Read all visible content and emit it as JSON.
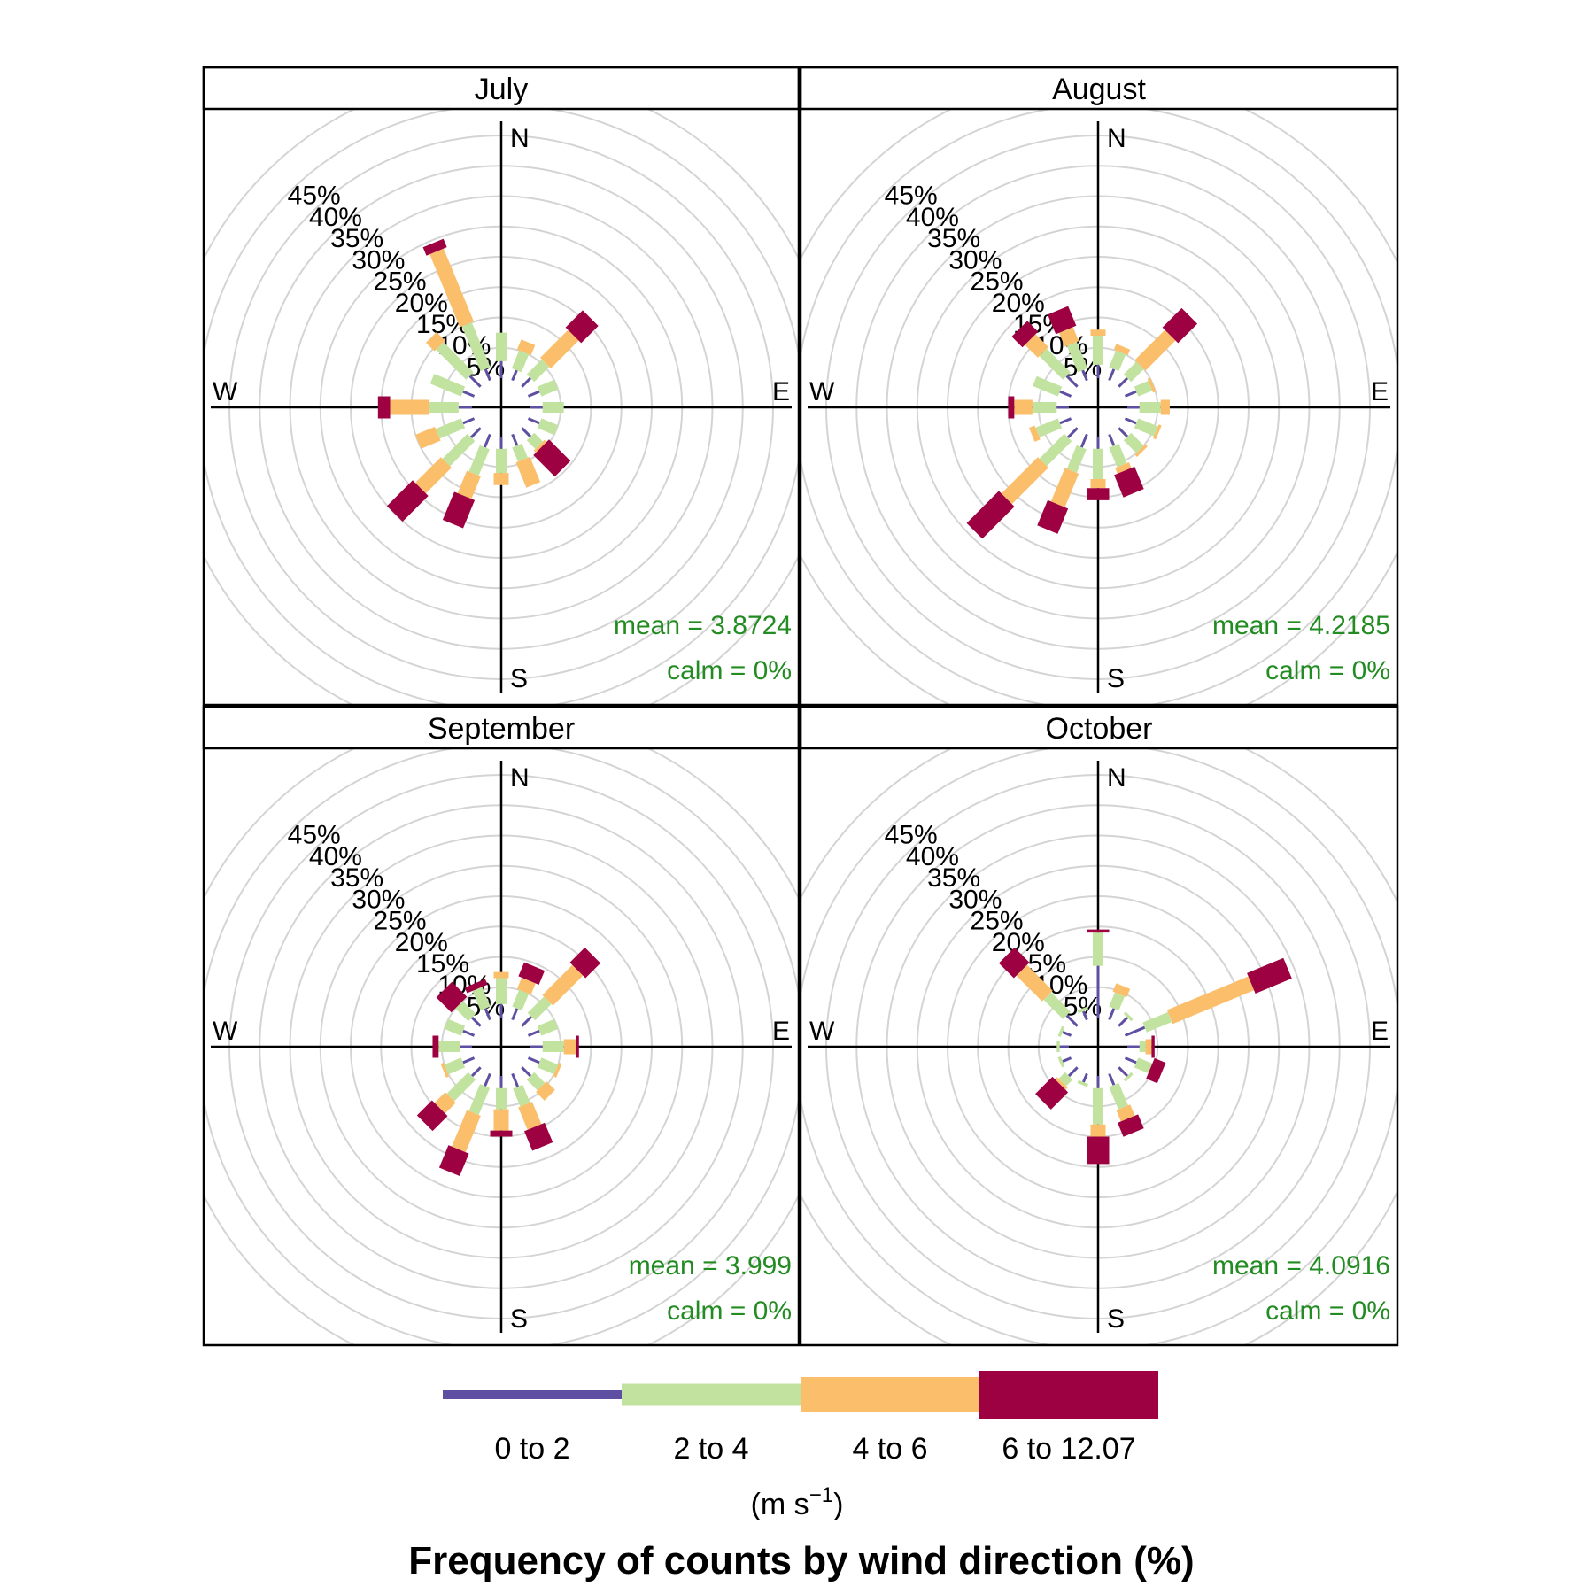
{
  "chart_data": {
    "type": "windrose",
    "title": "Frequency of counts by wind direction (%)",
    "directions": [
      "N",
      "NNE",
      "NE",
      "ENE",
      "E",
      "ESE",
      "SE",
      "SSE",
      "S",
      "SSW",
      "SW",
      "WSW",
      "W",
      "WNW",
      "NW",
      "NNW"
    ],
    "direction_degrees": [
      0,
      22.5,
      45,
      67.5,
      90,
      112.5,
      135,
      157.5,
      180,
      202.5,
      225,
      247.5,
      270,
      292.5,
      315,
      337.5
    ],
    "compass_labels": {
      "N": "N",
      "E": "E",
      "S": "S",
      "W": "W"
    },
    "radial_axis": {
      "unit": "%",
      "ticks": [
        5,
        10,
        15,
        20,
        25,
        30,
        35,
        40,
        45
      ],
      "tick_labels": [
        "5%",
        "10%",
        "15%",
        "20%",
        "25%",
        "30%",
        "35%",
        "40%",
        "45%"
      ],
      "max": 50,
      "grid": true
    },
    "legend": {
      "bins": [
        {
          "label": "0 to 2",
          "color": "#5e4fa2"
        },
        {
          "label": "2 to 4",
          "color": "#c2e3a0"
        },
        {
          "label": "4 to 6",
          "color": "#fbbf6c"
        },
        {
          "label": "6 to 12.07",
          "color": "#9e0142"
        }
      ],
      "unit_label": "(m s",
      "unit_superscript": "−1",
      "unit_close": ")"
    },
    "panels": [
      {
        "title": "July",
        "mean_text": "mean = 3.8724",
        "calm_text": "calm = 0%",
        "cumulative_percent": [
          [
            2.8,
            7.5,
            7.5,
            7.5
          ],
          [
            1.8,
            5.0,
            6.8,
            6.8
          ],
          [
            2.0,
            5.5,
            12.0,
            16.0
          ],
          [
            2.0,
            5.0,
            5.0,
            5.0
          ],
          [
            2.0,
            5.5,
            5.5,
            5.5
          ],
          [
            2.0,
            5.0,
            5.0,
            5.0
          ],
          [
            2.0,
            4.0,
            4.5,
            9.5
          ],
          [
            2.0,
            4.5,
            9.0,
            9.0
          ],
          [
            2.0,
            6.0,
            8.0,
            8.0
          ],
          [
            2.3,
            7.0,
            11.0,
            16.0
          ],
          [
            2.2,
            8.0,
            14.0,
            20.0
          ],
          [
            2.0,
            6.5,
            10.0,
            10.0
          ],
          [
            2.2,
            7.0,
            13.5,
            15.5
          ],
          [
            2.0,
            7.5,
            7.5,
            7.5
          ],
          [
            2.5,
            9.5,
            11.5,
            11.5
          ],
          [
            2.0,
            10.0,
            23.0,
            24.5
          ]
        ]
      },
      {
        "title": "August",
        "mean_text": "mean = 4.2185",
        "calm_text": "calm = 0%",
        "cumulative_percent": [
          [
            2.2,
            7.0,
            8.0,
            8.0
          ],
          [
            2.0,
            5.0,
            6.0,
            6.0
          ],
          [
            2.0,
            5.0,
            12.0,
            16.5
          ],
          [
            2.0,
            4.5,
            5.0,
            5.0
          ],
          [
            2.0,
            5.5,
            7.0,
            7.0
          ],
          [
            2.0,
            5.5,
            6.0,
            6.0
          ],
          [
            2.0,
            5.0,
            5.5,
            5.5
          ],
          [
            2.0,
            5.5,
            6.5,
            10.5
          ],
          [
            2.0,
            7.0,
            8.5,
            10.5
          ],
          [
            2.3,
            6.5,
            12.5,
            17.0
          ],
          [
            2.2,
            8.0,
            16.5,
            24.0
          ],
          [
            2.0,
            6.0,
            7.0,
            7.0
          ],
          [
            2.0,
            6.0,
            9.0,
            10.0
          ],
          [
            2.0,
            6.5,
            6.5,
            6.5
          ],
          [
            2.5,
            8.0,
            11.0,
            13.5
          ],
          [
            1.8,
            6.5,
            9.0,
            12.5
          ]
        ]
      },
      {
        "title": "September",
        "mean_text": "mean = 3.999",
        "calm_text": "calm = 0%",
        "cumulative_percent": [
          [
            2.2,
            6.5,
            7.5,
            7.5
          ],
          [
            2.0,
            5.0,
            7.0,
            9.5
          ],
          [
            2.2,
            6.0,
            13.0,
            16.5
          ],
          [
            2.0,
            5.0,
            5.0,
            5.0
          ],
          [
            2.0,
            5.5,
            7.5,
            8.0
          ],
          [
            2.0,
            5.0,
            5.5,
            5.5
          ],
          [
            2.0,
            4.5,
            6.5,
            6.5
          ],
          [
            2.3,
            5.5,
            9.5,
            13.0
          ],
          [
            2.0,
            5.5,
            9.0,
            10.0
          ],
          [
            2.2,
            7.0,
            13.5,
            17.5
          ],
          [
            2.0,
            7.0,
            9.5,
            13.0
          ],
          [
            2.0,
            5.0,
            5.5,
            5.5
          ],
          [
            2.0,
            5.5,
            5.5,
            6.5
          ],
          [
            2.0,
            5.0,
            5.0,
            5.0
          ],
          [
            2.0,
            5.0,
            5.0,
            8.5
          ],
          [
            2.0,
            5.5,
            5.5,
            6.5
          ]
        ]
      },
      {
        "title": "October",
        "mean_text": "mean = 4.0916",
        "calm_text": "calm = 0%",
        "cumulative_percent": [
          [
            8.5,
            14.0,
            14.0,
            14.5
          ],
          [
            2.0,
            4.5,
            6.0,
            6.0
          ],
          [
            2.0,
            2.5,
            2.5,
            2.5
          ],
          [
            3.5,
            8.0,
            22.5,
            29.0
          ],
          [
            2.0,
            3.0,
            4.0,
            4.5
          ],
          [
            2.0,
            4.5,
            4.5,
            6.5
          ],
          [
            2.0,
            2.5,
            2.5,
            2.5
          ],
          [
            2.0,
            6.0,
            8.0,
            10.5
          ],
          [
            2.0,
            8.0,
            10.0,
            14.5
          ],
          [
            1.5,
            2.0,
            2.0,
            2.0
          ],
          [
            2.0,
            3.5,
            4.0,
            8.0
          ],
          [
            1.5,
            2.0,
            2.0,
            2.0
          ],
          [
            1.5,
            2.0,
            2.0,
            2.0
          ],
          [
            1.5,
            2.0,
            2.0,
            2.0
          ],
          [
            2.5,
            7.0,
            13.0,
            16.5
          ],
          [
            1.5,
            2.0,
            2.0,
            2.0
          ]
        ]
      }
    ]
  }
}
